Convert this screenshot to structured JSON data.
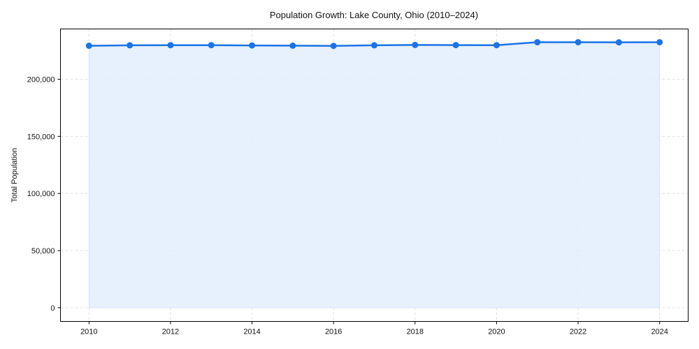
{
  "chart_data": {
    "type": "area",
    "title": "Population Growth: Lake County, Ohio (2010–2024)",
    "xlabel": "",
    "ylabel": "Total Population",
    "x": [
      2010,
      2011,
      2012,
      2013,
      2014,
      2015,
      2016,
      2017,
      2018,
      2019,
      2020,
      2021,
      2022,
      2023,
      2024
    ],
    "series": [
      {
        "name": "Total Population",
        "values": [
          229300,
          229700,
          229800,
          229800,
          229600,
          229400,
          229200,
          229700,
          230000,
          229900,
          229800,
          232400,
          232400,
          232300,
          232400
        ],
        "color": "#1a73e8",
        "fill_color": "#e4eefd"
      }
    ],
    "xticks": [
      "2010",
      "2012",
      "2014",
      "2016",
      "2018",
      "2020",
      "2022",
      "2024"
    ],
    "yticks": [
      "0",
      "50,000",
      "100,000",
      "150,000",
      "200,000"
    ],
    "ylim": [
      -12000,
      244000
    ],
    "xlim": [
      2009.3,
      2024.7
    ],
    "grid": true,
    "legend": null
  }
}
